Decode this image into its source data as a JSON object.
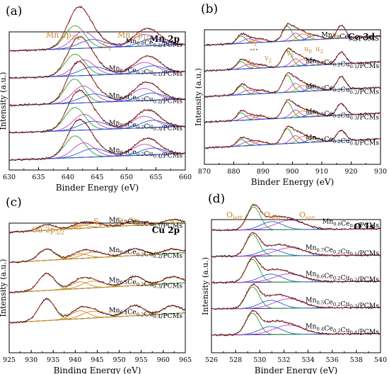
{
  "colors": {
    "raw": "#000000",
    "envelope": "#d62728",
    "baseline": "#1f1f8f",
    "peak_green": "#2ca02c",
    "peak_magenta": "#c040c0",
    "peak_blue": "#1f5fd0",
    "peak_orange": "#d98a1c",
    "annotation": "#c8862a",
    "dash_ce": "#7a5a10"
  },
  "chart_data": [
    {
      "type": "line",
      "panel_label": "(a)",
      "element_label": "Mn 2p",
      "xlabel": "Binder Energy (eV)",
      "ylabel": "Intensity (a.u.)",
      "xlim": [
        630,
        660
      ],
      "x_reversed": false,
      "xticks": [
        630,
        635,
        640,
        645,
        650,
        655,
        660
      ],
      "annotations": [
        "Mn 2p3/2",
        "S1",
        "Mn 2p1/2"
      ],
      "series": [
        {
          "name": "Mn0.8Ce0.2/PCMs",
          "peaks": [
            {
              "center": 641.2,
              "height": 0.95,
              "width": 1.7,
              "color": "peak_green"
            },
            {
              "center": 642.6,
              "height": 0.7,
              "width": 1.8,
              "color": "peak_magenta"
            },
            {
              "center": 644.2,
              "height": 0.35,
              "width": 2.2,
              "color": "peak_blue"
            },
            {
              "center": 653.0,
              "height": 0.48,
              "width": 2.0,
              "color": "peak_magenta"
            },
            {
              "center": 654.4,
              "height": 0.3,
              "width": 2.0,
              "color": "peak_blue"
            }
          ]
        },
        {
          "name": "Mn0.7Ce0.2Cu0.1/PCMs",
          "peaks": [
            {
              "center": 641.2,
              "height": 0.9,
              "width": 1.7,
              "color": "peak_green"
            },
            {
              "center": 642.7,
              "height": 0.65,
              "width": 1.8,
              "color": "peak_magenta"
            },
            {
              "center": 644.3,
              "height": 0.35,
              "width": 2.2,
              "color": "peak_blue"
            },
            {
              "center": 653.0,
              "height": 0.45,
              "width": 2.0,
              "color": "peak_magenta"
            },
            {
              "center": 654.4,
              "height": 0.3,
              "width": 2.0,
              "color": "peak_blue"
            }
          ]
        },
        {
          "name": "Mn0.6Ce0.2Cu0.2/PCMs",
          "peaks": [
            {
              "center": 641.1,
              "height": 1.0,
              "width": 1.6,
              "color": "peak_green"
            },
            {
              "center": 642.6,
              "height": 0.7,
              "width": 1.8,
              "color": "peak_magenta"
            },
            {
              "center": 644.4,
              "height": 0.35,
              "width": 2.2,
              "color": "peak_blue"
            },
            {
              "center": 652.9,
              "height": 0.5,
              "width": 2.0,
              "color": "peak_magenta"
            },
            {
              "center": 654.3,
              "height": 0.3,
              "width": 2.0,
              "color": "peak_blue"
            }
          ]
        },
        {
          "name": "Mn0.5Ce0.2Cu0.3/PCMs",
          "peaks": [
            {
              "center": 641.2,
              "height": 0.95,
              "width": 1.7,
              "color": "peak_green"
            },
            {
              "center": 642.7,
              "height": 0.65,
              "width": 1.8,
              "color": "peak_magenta"
            },
            {
              "center": 644.3,
              "height": 0.35,
              "width": 2.2,
              "color": "peak_blue"
            },
            {
              "center": 653.0,
              "height": 0.48,
              "width": 2.0,
              "color": "peak_magenta"
            },
            {
              "center": 654.4,
              "height": 0.3,
              "width": 2.0,
              "color": "peak_blue"
            }
          ]
        },
        {
          "name": "Mn0.4Ce0.2Cu0.4/PCMs",
          "peaks": [
            {
              "center": 641.2,
              "height": 0.9,
              "width": 1.7,
              "color": "peak_green"
            },
            {
              "center": 642.7,
              "height": 0.6,
              "width": 1.8,
              "color": "peak_magenta"
            },
            {
              "center": 644.3,
              "height": 0.35,
              "width": 2.2,
              "color": "peak_blue"
            },
            {
              "center": 653.0,
              "height": 0.45,
              "width": 2.0,
              "color": "peak_magenta"
            },
            {
              "center": 654.4,
              "height": 0.28,
              "width": 2.0,
              "color": "peak_blue"
            }
          ]
        }
      ]
    },
    {
      "type": "line",
      "panel_label": "(b)",
      "element_label": "Ce 3d",
      "xlabel": "Binder Energy (eV)",
      "ylabel": "Intensity (a.u.)",
      "xlim": [
        870,
        930
      ],
      "x_reversed": false,
      "xticks": [
        870,
        880,
        890,
        900,
        910,
        920,
        930
      ],
      "annotations": [
        "v1",
        "v0",
        "v2",
        "v3",
        "u1",
        "u0",
        "u2",
        "u3"
      ],
      "series": [
        {
          "name": "Mn0.8Ce0.2/PCMS",
          "peaks": [
            {
              "center": 882.5,
              "height": 0.35,
              "width": 1.5,
              "color": "peak_green"
            },
            {
              "center": 885.0,
              "height": 0.2,
              "width": 2.0,
              "color": "peak_magenta"
            },
            {
              "center": 889.0,
              "height": 0.15,
              "width": 2.0,
              "color": "peak_orange"
            },
            {
              "center": 898.2,
              "height": 0.7,
              "width": 1.6,
              "color": "peak_green"
            },
            {
              "center": 901.0,
              "height": 0.35,
              "width": 1.6,
              "color": "peak_magenta"
            },
            {
              "center": 903.5,
              "height": 0.3,
              "width": 1.8,
              "color": "peak_orange"
            },
            {
              "center": 907.5,
              "height": 0.2,
              "width": 2.0,
              "color": "peak_blue"
            },
            {
              "center": 916.6,
              "height": 0.6,
              "width": 1.5,
              "color": "peak_blue"
            }
          ]
        },
        {
          "name": "Mn0.7Ce0.2Cu0.1/PCMs",
          "peaks": [
            {
              "center": 882.5,
              "height": 0.35,
              "width": 1.5,
              "color": "peak_green"
            },
            {
              "center": 885.0,
              "height": 0.2,
              "width": 2.0,
              "color": "peak_magenta"
            },
            {
              "center": 889.0,
              "height": 0.15,
              "width": 2.0,
              "color": "peak_orange"
            },
            {
              "center": 898.2,
              "height": 0.75,
              "width": 1.6,
              "color": "peak_green"
            },
            {
              "center": 901.0,
              "height": 0.35,
              "width": 1.6,
              "color": "peak_magenta"
            },
            {
              "center": 903.5,
              "height": 0.3,
              "width": 1.8,
              "color": "peak_orange"
            },
            {
              "center": 907.5,
              "height": 0.2,
              "width": 2.0,
              "color": "peak_blue"
            },
            {
              "center": 916.6,
              "height": 0.55,
              "width": 1.5,
              "color": "peak_blue"
            }
          ]
        },
        {
          "name": "Mn0.6Ce0.2Cu0.2/PCMs",
          "peaks": [
            {
              "center": 882.5,
              "height": 0.4,
              "width": 1.5,
              "color": "peak_green"
            },
            {
              "center": 885.0,
              "height": 0.2,
              "width": 2.0,
              "color": "peak_magenta"
            },
            {
              "center": 889.0,
              "height": 0.15,
              "width": 2.0,
              "color": "peak_orange"
            },
            {
              "center": 898.2,
              "height": 0.8,
              "width": 1.6,
              "color": "peak_green"
            },
            {
              "center": 901.0,
              "height": 0.4,
              "width": 1.6,
              "color": "peak_magenta"
            },
            {
              "center": 903.5,
              "height": 0.3,
              "width": 1.8,
              "color": "peak_orange"
            },
            {
              "center": 907.5,
              "height": 0.2,
              "width": 2.0,
              "color": "peak_blue"
            },
            {
              "center": 916.6,
              "height": 0.6,
              "width": 1.5,
              "color": "peak_blue"
            }
          ]
        },
        {
          "name": "Mn0.5Ce0.2Cu0.3/PCMs",
          "peaks": [
            {
              "center": 882.5,
              "height": 0.35,
              "width": 1.5,
              "color": "peak_green"
            },
            {
              "center": 885.0,
              "height": 0.2,
              "width": 2.0,
              "color": "peak_magenta"
            },
            {
              "center": 889.0,
              "height": 0.15,
              "width": 2.0,
              "color": "peak_orange"
            },
            {
              "center": 898.2,
              "height": 0.75,
              "width": 1.6,
              "color": "peak_green"
            },
            {
              "center": 901.0,
              "height": 0.35,
              "width": 1.6,
              "color": "peak_magenta"
            },
            {
              "center": 903.5,
              "height": 0.3,
              "width": 1.8,
              "color": "peak_orange"
            },
            {
              "center": 907.5,
              "height": 0.2,
              "width": 2.0,
              "color": "peak_blue"
            },
            {
              "center": 916.6,
              "height": 0.55,
              "width": 1.5,
              "color": "peak_blue"
            }
          ]
        },
        {
          "name": "Mn0.4Ce0.2Cu0.4/PCMs",
          "peaks": [
            {
              "center": 882.5,
              "height": 0.3,
              "width": 1.5,
              "color": "peak_green"
            },
            {
              "center": 885.0,
              "height": 0.2,
              "width": 2.0,
              "color": "peak_magenta"
            },
            {
              "center": 889.0,
              "height": 0.15,
              "width": 2.0,
              "color": "peak_orange"
            },
            {
              "center": 898.2,
              "height": 0.7,
              "width": 1.6,
              "color": "peak_green"
            },
            {
              "center": 901.0,
              "height": 0.35,
              "width": 1.6,
              "color": "peak_magenta"
            },
            {
              "center": 903.5,
              "height": 0.3,
              "width": 1.8,
              "color": "peak_orange"
            },
            {
              "center": 907.5,
              "height": 0.2,
              "width": 2.0,
              "color": "peak_blue"
            },
            {
              "center": 916.6,
              "height": 0.5,
              "width": 1.5,
              "color": "peak_blue"
            }
          ]
        }
      ]
    },
    {
      "type": "line",
      "panel_label": "(c)",
      "element_label": "Cu 2p",
      "xlabel": "Binding Energy (eV)",
      "ylabel": "Intensity (a.u.)",
      "xlim": [
        925,
        965
      ],
      "x_reversed": false,
      "xticks": [
        925,
        930,
        935,
        940,
        945,
        950,
        955,
        960,
        965
      ],
      "annotations": [
        "Cu 2p3/2",
        "S1",
        "S2",
        "Cu 2p1/2",
        "S1"
      ],
      "series": [
        {
          "name": "Mn0.7Ce0.2Cu0.1/PCMs",
          "peaks": [
            {
              "center": 933.5,
              "height": 0.25,
              "width": 1.8,
              "color": "peak_green"
            },
            {
              "center": 941.0,
              "height": 0.15,
              "width": 2.0,
              "color": "peak_orange"
            },
            {
              "center": 944.0,
              "height": 0.18,
              "width": 2.5,
              "color": "peak_orange"
            },
            {
              "center": 953.5,
              "height": 0.2,
              "width": 2.0,
              "color": "peak_green"
            },
            {
              "center": 962.0,
              "height": 0.15,
              "width": 2.0,
              "color": "peak_orange"
            }
          ]
        },
        {
          "name": "Mn0.6Ce0.2Cu0.2/PCMs",
          "peaks": [
            {
              "center": 933.5,
              "height": 0.5,
              "width": 1.8,
              "color": "peak_green"
            },
            {
              "center": 941.0,
              "height": 0.2,
              "width": 2.0,
              "color": "peak_orange"
            },
            {
              "center": 944.0,
              "height": 0.25,
              "width": 2.5,
              "color": "peak_orange"
            },
            {
              "center": 953.5,
              "height": 0.3,
              "width": 2.0,
              "color": "peak_green"
            },
            {
              "center": 962.0,
              "height": 0.2,
              "width": 2.0,
              "color": "peak_orange"
            }
          ]
        },
        {
          "name": "Mn0.5Ce0.2Cu0.3/PCMs",
          "peaks": [
            {
              "center": 933.5,
              "height": 0.75,
              "width": 1.8,
              "color": "peak_green"
            },
            {
              "center": 941.0,
              "height": 0.3,
              "width": 2.0,
              "color": "peak_orange"
            },
            {
              "center": 944.0,
              "height": 0.3,
              "width": 2.5,
              "color": "peak_orange"
            },
            {
              "center": 953.5,
              "height": 0.4,
              "width": 2.0,
              "color": "peak_green"
            },
            {
              "center": 962.0,
              "height": 0.3,
              "width": 2.0,
              "color": "peak_orange"
            }
          ]
        },
        {
          "name": "Mn0.4Ce0.2Cu0.4/PCMs",
          "peaks": [
            {
              "center": 933.5,
              "height": 0.95,
              "width": 1.8,
              "color": "peak_green"
            },
            {
              "center": 941.0,
              "height": 0.35,
              "width": 2.0,
              "color": "peak_orange"
            },
            {
              "center": 944.0,
              "height": 0.3,
              "width": 2.5,
              "color": "peak_orange"
            },
            {
              "center": 953.5,
              "height": 0.45,
              "width": 2.0,
              "color": "peak_green"
            },
            {
              "center": 962.0,
              "height": 0.35,
              "width": 2.0,
              "color": "peak_orange"
            }
          ]
        }
      ]
    },
    {
      "type": "line",
      "panel_label": "(d)",
      "element_label": "O 1s",
      "xlabel": "Binder Energy (eV)",
      "ylabel": "Intensity (a.u.)",
      "xlim": [
        526,
        540
      ],
      "x_reversed": false,
      "xticks": [
        526,
        528,
        530,
        532,
        534,
        536,
        538,
        540
      ],
      "annotations": [
        "Olatt.",
        "Oads.",
        "Osur."
      ],
      "series": [
        {
          "name": "Mn0.8Ce0.2/PCMs",
          "peaks": [
            {
              "center": 529.5,
              "height": 0.85,
              "width": 0.55,
              "color": "peak_green"
            },
            {
              "center": 531.0,
              "height": 0.3,
              "width": 0.9,
              "color": "peak_blue"
            },
            {
              "center": 532.5,
              "height": 0.35,
              "width": 1.2,
              "color": "peak_magenta"
            }
          ]
        },
        {
          "name": "Mn0.7Ce0.2Cu0.1/PCMs",
          "peaks": [
            {
              "center": 529.4,
              "height": 0.8,
              "width": 0.55,
              "color": "peak_green"
            },
            {
              "center": 530.9,
              "height": 0.25,
              "width": 0.9,
              "color": "peak_blue"
            },
            {
              "center": 532.5,
              "height": 0.3,
              "width": 1.2,
              "color": "peak_magenta"
            }
          ]
        },
        {
          "name": "Mn0.6Ce0.2Cu0.2/PCMs",
          "peaks": [
            {
              "center": 529.4,
              "height": 0.85,
              "width": 0.55,
              "color": "peak_green"
            },
            {
              "center": 530.9,
              "height": 0.3,
              "width": 0.9,
              "color": "peak_blue"
            },
            {
              "center": 532.4,
              "height": 0.3,
              "width": 1.2,
              "color": "peak_magenta"
            }
          ]
        },
        {
          "name": "Mn0.5Ce0.2Cu0.3/PCMs",
          "peaks": [
            {
              "center": 529.4,
              "height": 0.8,
              "width": 0.55,
              "color": "peak_green"
            },
            {
              "center": 530.9,
              "height": 0.3,
              "width": 0.9,
              "color": "peak_blue"
            },
            {
              "center": 532.4,
              "height": 0.35,
              "width": 1.2,
              "color": "peak_magenta"
            }
          ]
        },
        {
          "name": "Mn0.4Ce0.2Cu0.4/PCMs",
          "peaks": [
            {
              "center": 529.4,
              "height": 0.8,
              "width": 0.55,
              "color": "peak_green"
            },
            {
              "center": 530.9,
              "height": 0.3,
              "width": 0.9,
              "color": "peak_blue"
            },
            {
              "center": 532.4,
              "height": 0.35,
              "width": 1.2,
              "color": "peak_magenta"
            }
          ]
        }
      ]
    }
  ]
}
